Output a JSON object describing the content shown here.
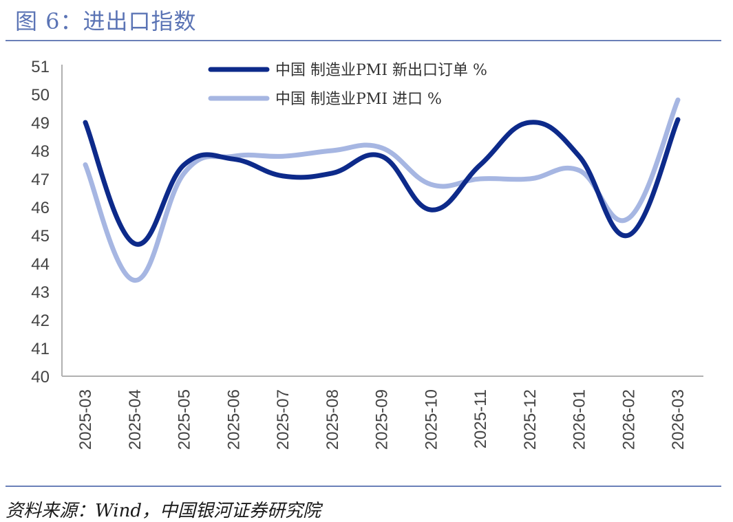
{
  "title": "图 6：进出口指数",
  "source": "资料来源：Wind，中国银河证券研究院",
  "colors": {
    "accent": "#5b74b5",
    "rule": "#6a7fb8",
    "axis": "#b0b0b0"
  },
  "chart_data": {
    "type": "line",
    "title": "",
    "xlabel": "",
    "ylabel": "",
    "categories": [
      "2025-03",
      "2025-04",
      "2025-05",
      "2025-06",
      "2025-07",
      "2025-08",
      "2025-09",
      "2025-10",
      "2025-11",
      "2025-12",
      "2026-01",
      "2026-02",
      "2026-03"
    ],
    "ylim": [
      40,
      51
    ],
    "yticks": [
      40,
      41,
      42,
      43,
      44,
      45,
      46,
      47,
      48,
      49,
      50,
      51
    ],
    "grid": false,
    "legend_position": "top-center",
    "series": [
      {
        "name": "中国 制造业PMI 新出口订单 %",
        "color": "#0d2a8a",
        "values": [
          49.0,
          44.7,
          47.5,
          47.7,
          47.1,
          47.2,
          47.8,
          45.9,
          47.5,
          49.0,
          47.8,
          45.0,
          49.1
        ]
      },
      {
        "name": "中国 制造业PMI 进口 %",
        "color": "#a6b6e2",
        "values": [
          47.5,
          43.4,
          47.2,
          47.8,
          47.8,
          48.0,
          48.1,
          46.8,
          47.0,
          47.0,
          47.3,
          45.6,
          49.8
        ]
      }
    ]
  }
}
